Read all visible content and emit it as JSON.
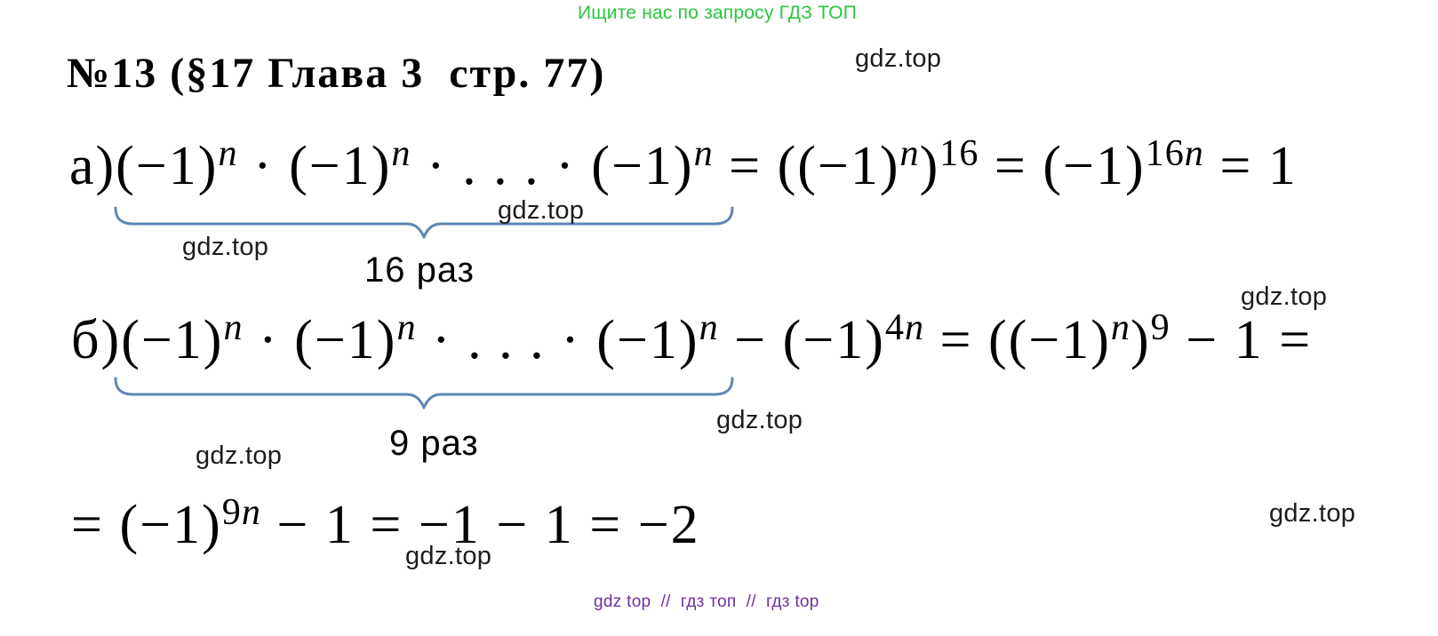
{
  "colors": {
    "header_green": "#2cc63e",
    "footer_purple": "#7030a0",
    "brace_blue": "#5e86b0",
    "watermark": "#1d1d1d",
    "ink": "#000000"
  },
  "header": {
    "text": "Ищите нас по запросу ГДЗ ТОП"
  },
  "title": {
    "text": "№13 (§17 Глава 3  стр. 77)"
  },
  "watermarks": {
    "top_right": "gdz.top",
    "a_mid": "gdz.top",
    "a_left": "gdz.top",
    "b_top_right": "gdz.top",
    "b_under_right": "gdz.top",
    "b_under_left": "gdz.top",
    "c_right": "gdz.top",
    "c_bottom": "gdz.top"
  },
  "math": {
    "line_a": [
      {
        "b": "а)(−1)",
        "s": "n"
      },
      {
        "b": " · (−1)",
        "s": "n"
      },
      {
        "b": " · . . . · (−1)",
        "s": "n"
      },
      {
        "b": " = ((−1)",
        "s": "n"
      },
      {
        "b": ")",
        "s": "16"
      },
      {
        "b": " = (−1)",
        "s": "16n"
      },
      {
        "b": " = 1"
      }
    ],
    "line_b": [
      {
        "b": "б)(−1)",
        "s": "n"
      },
      {
        "b": " · (−1)",
        "s": "n"
      },
      {
        "b": " · . . . · (−1)",
        "s": "n"
      },
      {
        "b": " − (−1)",
        "s": "4n"
      },
      {
        "b": " = ((−1)",
        "s": "n"
      },
      {
        "b": ")",
        "s": "9"
      },
      {
        "b": " − 1 ="
      }
    ],
    "line_c": [
      {
        "b": "= (−1)",
        "s": "9n"
      },
      {
        "b": " − 1 = −1 − 1 = −2"
      }
    ]
  },
  "braces": {
    "a_label": "16 раз",
    "b_label": "9 раз"
  },
  "footer": {
    "text": "gdz top  //  гдз топ  //  гдз top"
  }
}
